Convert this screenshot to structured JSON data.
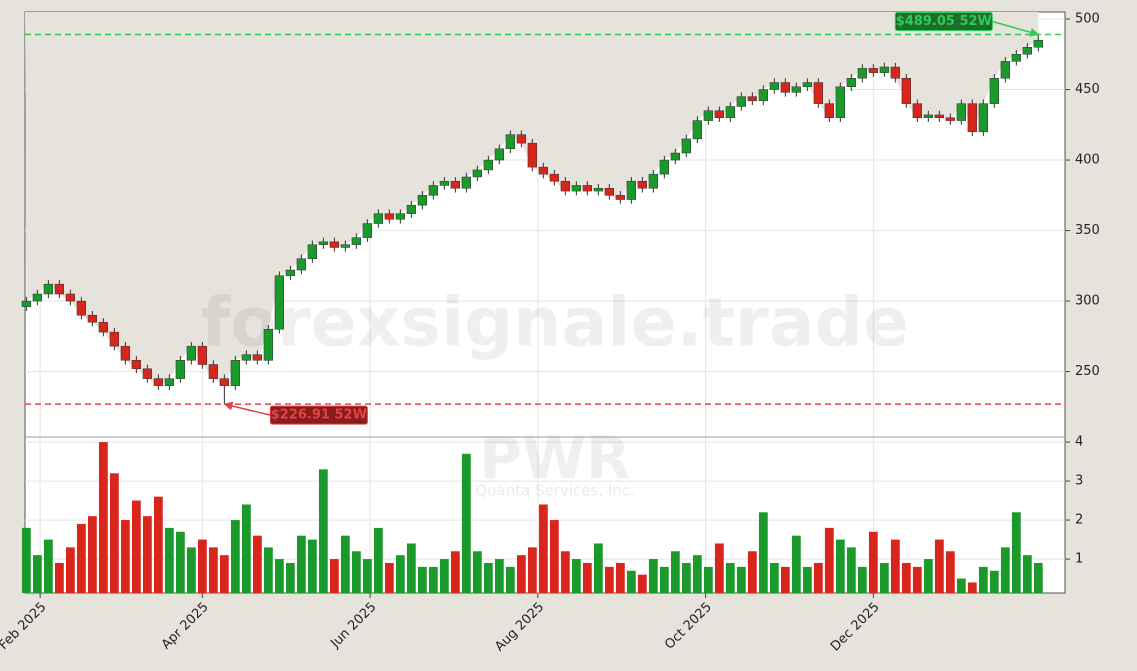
{
  "chart_data": {
    "type": "candlestick",
    "x": [
      26,
      30,
      34,
      38,
      42,
      46,
      50,
      54,
      58,
      62,
      66,
      70,
      74,
      78,
      82,
      86,
      90,
      94,
      98,
      102,
      106,
      110,
      114,
      118,
      122,
      126,
      130,
      134,
      138,
      142,
      146,
      150,
      154,
      158,
      162,
      166,
      170,
      174,
      178,
      182,
      186,
      190,
      194,
      198,
      202,
      206,
      210,
      214,
      218,
      222,
      226,
      230,
      234,
      238,
      242,
      246,
      250,
      254,
      258,
      262,
      266,
      270,
      274,
      278,
      282,
      286,
      290,
      294,
      298,
      302,
      306,
      310,
      314,
      318,
      322,
      326,
      330,
      334,
      338,
      342,
      346,
      350,
      354,
      358,
      362,
      366,
      370,
      374,
      378,
      382,
      386,
      390,
      394
    ],
    "open": [
      296,
      300,
      305,
      312,
      305,
      300,
      290,
      285,
      278,
      268,
      258,
      252,
      245,
      240,
      245,
      258,
      268,
      255,
      245,
      240,
      258,
      262,
      258,
      280,
      318,
      322,
      330,
      340,
      342,
      338,
      340,
      345,
      355,
      362,
      358,
      362,
      368,
      375,
      382,
      385,
      380,
      388,
      393,
      400,
      408,
      418,
      412,
      395,
      390,
      385,
      378,
      382,
      378,
      380,
      375,
      372,
      385,
      380,
      390,
      400,
      405,
      415,
      428,
      435,
      430,
      438,
      445,
      442,
      450,
      455,
      448,
      452,
      455,
      440,
      430,
      452,
      458,
      465,
      462,
      466,
      458,
      440,
      430,
      432,
      430,
      428,
      440,
      420,
      440,
      458,
      470,
      475,
      480
    ],
    "high": [
      303,
      308,
      315,
      315,
      308,
      303,
      293,
      288,
      281,
      271,
      261,
      255,
      248,
      248,
      261,
      271,
      271,
      258,
      248,
      261,
      265,
      265,
      283,
      321,
      325,
      333,
      343,
      345,
      345,
      343,
      348,
      358,
      365,
      365,
      365,
      371,
      378,
      385,
      388,
      388,
      391,
      396,
      403,
      411,
      421,
      421,
      415,
      398,
      393,
      388,
      385,
      385,
      383,
      383,
      378,
      388,
      388,
      393,
      403,
      408,
      418,
      431,
      438,
      438,
      441,
      448,
      448,
      453,
      458,
      458,
      455,
      458,
      458,
      443,
      455,
      461,
      468,
      468,
      469,
      469,
      461,
      443,
      435,
      435,
      433,
      443,
      443,
      443,
      461,
      473,
      478,
      483,
      489.05
    ],
    "low": [
      293,
      297,
      302,
      302,
      297,
      287,
      282,
      275,
      265,
      255,
      249,
      242,
      237,
      237,
      242,
      255,
      252,
      242,
      226.91,
      237,
      255,
      255,
      255,
      277,
      315,
      319,
      327,
      337,
      335,
      335,
      337,
      342,
      352,
      355,
      355,
      359,
      365,
      372,
      379,
      377,
      377,
      385,
      390,
      397,
      405,
      409,
      392,
      387,
      382,
      375,
      375,
      375,
      375,
      372,
      369,
      369,
      377,
      377,
      387,
      397,
      402,
      412,
      425,
      427,
      427,
      435,
      439,
      439,
      447,
      445,
      445,
      449,
      437,
      427,
      427,
      449,
      455,
      459,
      459,
      455,
      437,
      427,
      427,
      427,
      425,
      425,
      417,
      417,
      437,
      455,
      467,
      472,
      477
    ],
    "close": [
      300,
      305,
      312,
      305,
      300,
      290,
      285,
      278,
      268,
      258,
      252,
      245,
      240,
      245,
      258,
      268,
      255,
      245,
      240,
      258,
      262,
      258,
      280,
      318,
      322,
      330,
      340,
      342,
      338,
      340,
      345,
      355,
      362,
      358,
      362,
      368,
      375,
      382,
      385,
      380,
      388,
      393,
      400,
      408,
      418,
      412,
      395,
      390,
      385,
      378,
      382,
      378,
      380,
      375,
      372,
      385,
      380,
      390,
      400,
      405,
      415,
      428,
      435,
      430,
      438,
      445,
      442,
      450,
      455,
      448,
      452,
      455,
      440,
      430,
      452,
      458,
      465,
      462,
      466,
      458,
      440,
      430,
      432,
      430,
      428,
      440,
      420,
      440,
      458,
      470,
      475,
      480,
      485
    ],
    "volume": [
      1.8,
      1.1,
      1.5,
      0.9,
      1.3,
      1.9,
      2.1,
      4.0,
      3.2,
      2.0,
      2.5,
      2.1,
      2.6,
      1.8,
      1.7,
      1.3,
      1.5,
      1.3,
      1.1,
      2.0,
      2.4,
      1.6,
      1.3,
      1.0,
      0.9,
      1.6,
      1.5,
      3.3,
      1.0,
      1.6,
      1.2,
      1.0,
      1.8,
      0.9,
      1.1,
      1.4,
      0.8,
      0.8,
      1.0,
      1.2,
      3.7,
      1.2,
      0.9,
      1.0,
      0.8,
      1.1,
      1.3,
      2.4,
      2.0,
      1.2,
      1.0,
      0.9,
      1.4,
      0.8,
      0.9,
      0.7,
      0.6,
      1.0,
      0.8,
      1.2,
      0.9,
      1.1,
      0.8,
      1.4,
      0.9,
      0.8,
      1.2,
      2.2,
      0.9,
      0.8,
      1.6,
      0.8,
      0.9,
      1.8,
      1.5,
      1.3,
      0.8,
      1.7,
      0.9,
      1.5,
      0.9,
      0.8,
      1.0,
      1.5,
      1.2,
      0.5,
      0.4,
      0.8,
      0.7,
      1.3,
      2.2,
      1.1,
      0.9
    ],
    "up_color": "#1a9a2a",
    "down_color": "#d9261c",
    "xlim": [
      25.5,
      403.7
    ],
    "xticks": [
      {
        "value": 31,
        "label": "Feb 2025"
      },
      {
        "value": 90,
        "label": "Apr 2025"
      },
      {
        "value": 151,
        "label": "Jun 2025"
      },
      {
        "value": 212,
        "label": "Aug 2025"
      },
      {
        "value": 273,
        "label": "Oct 2025"
      },
      {
        "value": 334,
        "label": "Dec 2025"
      }
    ],
    "ylim": [
      203.6,
      505
    ],
    "yticks": [
      250,
      300,
      350,
      400,
      450,
      500
    ],
    "volume_ylim": [
      0.13,
      4.13
    ],
    "volume_yticks": [
      1,
      2,
      3,
      4
    ],
    "grid": true,
    "annotations": [
      {
        "value": 489.05,
        "label": "$489.05 52W",
        "color": "#2ecc55",
        "box": "#1e6b2e"
      },
      {
        "value": 226.91,
        "label": "$226.91 52W",
        "color": "#e0444a",
        "box": "#8a1c1c"
      }
    ],
    "watermark": "forexsignale.trade",
    "symbol": "PWR",
    "company": "Quanta Services, Inc."
  }
}
